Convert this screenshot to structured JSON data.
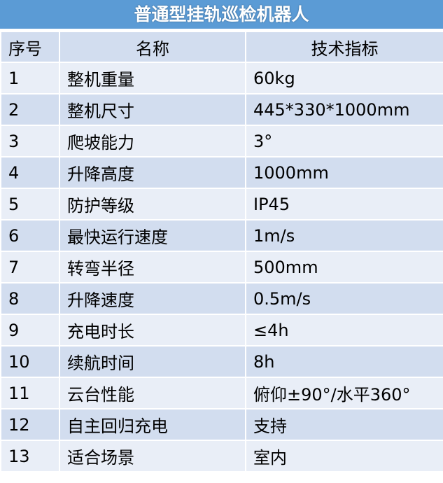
{
  "title": "普通型挂轨巡检机器人",
  "headers": [
    "序号",
    "名称",
    "技术指标"
  ],
  "rows": [
    [
      "1",
      "整机重量",
      "60kg"
    ],
    [
      "2",
      "整机尺寸",
      "445*330*1000mm"
    ],
    [
      "3",
      "爬坡能力",
      "3°"
    ],
    [
      "4",
      "升降高度",
      "1000mm"
    ],
    [
      "5",
      "防护等级",
      "IP45"
    ],
    [
      "6",
      "最快运行速度",
      "1m/s"
    ],
    [
      "7",
      "转弯半径",
      "500mm"
    ],
    [
      "8",
      "升降速度",
      "0.5m/s"
    ],
    [
      "9",
      "充电时长",
      "≤4h"
    ],
    [
      "10",
      "续航时间",
      "8h"
    ],
    [
      "11",
      "云台性能",
      "俯仰±90°/水平360°"
    ],
    [
      "12",
      "自主回归充电",
      "支持"
    ],
    [
      "13",
      "适合场景",
      "室内"
    ]
  ],
  "colors": {
    "title_bg": "#5b9bd5",
    "row_dark": "#d2ddef",
    "row_light": "#e9eef7"
  }
}
